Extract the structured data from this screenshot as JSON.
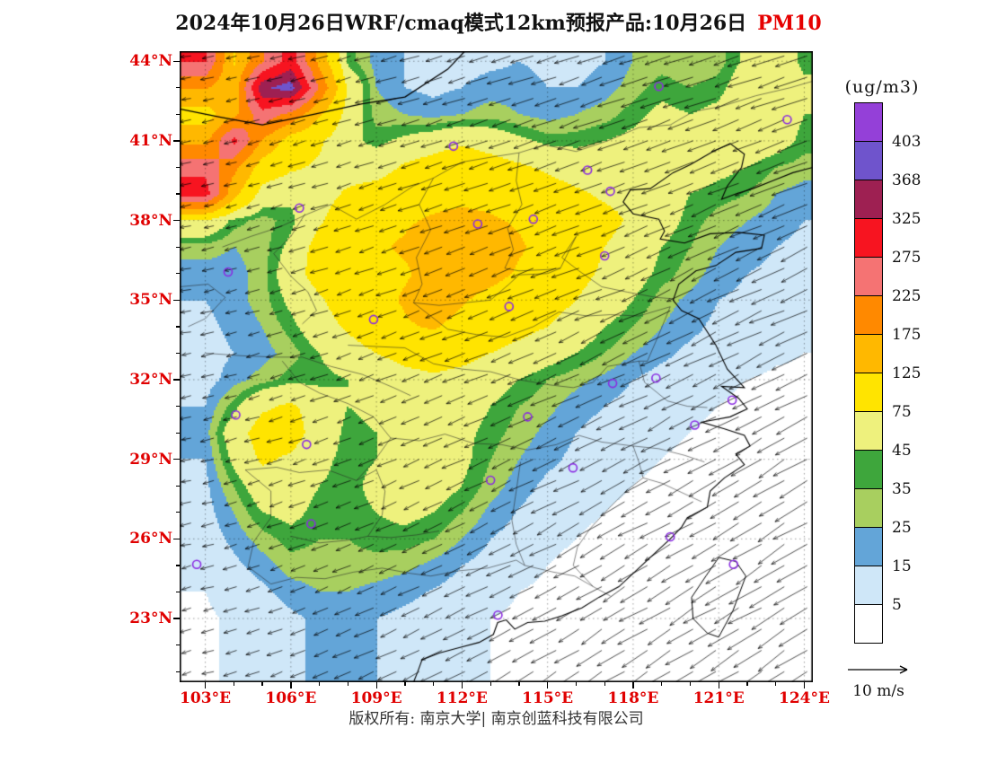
{
  "title": {
    "main": "2024年10月26日WRF/cmaq模式12km预报产品:10月26日",
    "species": "PM10"
  },
  "colors": {
    "axis_label": "#e00000",
    "title_species": "#e60000",
    "station_marker": "#8a2be2",
    "coastline": "#000000"
  },
  "axes": {
    "lon_labels": [
      "103°E",
      "106°E",
      "109°E",
      "112°E",
      "115°E",
      "118°E",
      "121°E",
      "124°E"
    ],
    "lon_values": [
      103,
      106,
      109,
      112,
      115,
      118,
      121,
      124
    ],
    "lat_labels": [
      "23°N",
      "26°N",
      "29°N",
      "32°N",
      "35°N",
      "38°N",
      "41°N",
      "44°N"
    ],
    "lat_values": [
      23,
      26,
      29,
      32,
      35,
      38,
      41,
      44
    ]
  },
  "colorbar": {
    "units": "(ug/m3)",
    "labels": [
      403,
      368,
      325,
      275,
      225,
      175,
      125,
      75,
      45,
      35,
      25,
      15,
      5
    ]
  },
  "wind_reference": {
    "label": "10 m/s",
    "speed_ms": 10
  },
  "footer": {
    "copyright": "版权所有: 南京大学| 南京创蓝科技有限公司"
  },
  "chart_data": {
    "type": "heatmap",
    "title": "2024年10月26日WRF/cmaq模式12km预报产品:10月26日 PM10",
    "units": "ug/m3",
    "xlabel": "",
    "ylabel": "",
    "xlim": [
      102.1,
      124.3
    ],
    "ylim": [
      20.6,
      44.38
    ],
    "x_tick_labels": [
      "103°E",
      "106°E",
      "109°E",
      "112°E",
      "115°E",
      "118°E",
      "121°E",
      "124°E"
    ],
    "y_tick_labels": [
      "23°N",
      "26°N",
      "29°N",
      "32°N",
      "35°N",
      "38°N",
      "41°N",
      "44°N"
    ],
    "levels": [
      5,
      15,
      25,
      35,
      45,
      75,
      125,
      175,
      225,
      275,
      325,
      368,
      403
    ],
    "palette": [
      "#ffffff",
      "#cfe7f8",
      "#63a5d8",
      "#a8cf5f",
      "#3ea63c",
      "#eef17d",
      "#ffe400",
      "#ffb800",
      "#ff8900",
      "#f57373",
      "#f71420",
      "#9e2052",
      "#6f54cc",
      "#9440d8"
    ],
    "x": [
      103,
      104,
      105,
      106,
      107,
      108,
      109,
      110,
      111,
      112,
      113,
      114,
      115,
      116,
      117,
      118,
      119,
      120,
      121,
      122,
      123,
      124
    ],
    "y": [
      44,
      43,
      42,
      41,
      40,
      39,
      38,
      37,
      36,
      35,
      34,
      33,
      32,
      31,
      30,
      29,
      28,
      27,
      26,
      25,
      24,
      23
    ],
    "values": [
      [
        280,
        120,
        220,
        300,
        160,
        40,
        20,
        15,
        10,
        10,
        12,
        15,
        12,
        10,
        15,
        25,
        30,
        25,
        30,
        50,
        60,
        40
      ],
      [
        180,
        140,
        360,
        390,
        220,
        70,
        25,
        15,
        12,
        15,
        20,
        20,
        15,
        15,
        20,
        30,
        40,
        35,
        40,
        60,
        70,
        50
      ],
      [
        100,
        160,
        260,
        210,
        130,
        60,
        30,
        25,
        20,
        25,
        30,
        25,
        20,
        25,
        30,
        40,
        50,
        45,
        50,
        65,
        60,
        45
      ],
      [
        160,
        290,
        170,
        100,
        80,
        50,
        40,
        50,
        60,
        70,
        60,
        50,
        40,
        40,
        45,
        50,
        55,
        50,
        55,
        60,
        55,
        40
      ],
      [
        260,
        190,
        100,
        80,
        70,
        60,
        60,
        80,
        90,
        100,
        90,
        80,
        70,
        60,
        60,
        60,
        60,
        55,
        50,
        45,
        35,
        30
      ],
      [
        300,
        140,
        60,
        50,
        60,
        80,
        90,
        100,
        110,
        110,
        110,
        100,
        90,
        80,
        70,
        65,
        55,
        45,
        40,
        35,
        25,
        20
      ],
      [
        70,
        40,
        30,
        40,
        70,
        100,
        110,
        120,
        130,
        140,
        130,
        120,
        110,
        95,
        85,
        70,
        55,
        40,
        30,
        25,
        20,
        15
      ],
      [
        30,
        25,
        30,
        50,
        90,
        110,
        120,
        130,
        150,
        160,
        150,
        130,
        110,
        90,
        75,
        60,
        45,
        35,
        25,
        20,
        15,
        12
      ],
      [
        20,
        20,
        30,
        60,
        90,
        110,
        115,
        120,
        140,
        150,
        140,
        120,
        100,
        85,
        70,
        55,
        40,
        30,
        20,
        15,
        12,
        10
      ],
      [
        15,
        20,
        30,
        50,
        70,
        95,
        110,
        130,
        150,
        130,
        110,
        100,
        90,
        75,
        60,
        45,
        30,
        22,
        15,
        12,
        10,
        8
      ],
      [
        12,
        18,
        25,
        40,
        60,
        80,
        100,
        120,
        130,
        110,
        95,
        85,
        75,
        60,
        45,
        35,
        25,
        18,
        12,
        10,
        8,
        6
      ],
      [
        10,
        15,
        20,
        30,
        45,
        60,
        75,
        85,
        90,
        85,
        75,
        65,
        55,
        45,
        35,
        25,
        18,
        12,
        10,
        8,
        6,
        5
      ],
      [
        10,
        20,
        30,
        40,
        40,
        45,
        55,
        65,
        70,
        65,
        55,
        45,
        35,
        28,
        22,
        15,
        10,
        8,
        6,
        5,
        4,
        4
      ],
      [
        15,
        40,
        70,
        80,
        60,
        45,
        50,
        55,
        60,
        55,
        45,
        35,
        28,
        20,
        15,
        10,
        8,
        6,
        5,
        4,
        4,
        4
      ],
      [
        20,
        60,
        90,
        90,
        60,
        40,
        45,
        50,
        55,
        50,
        40,
        30,
        22,
        15,
        10,
        8,
        6,
        5,
        4,
        4,
        4,
        4
      ],
      [
        15,
        50,
        80,
        70,
        50,
        40,
        45,
        55,
        60,
        50,
        35,
        25,
        18,
        12,
        8,
        6,
        5,
        4,
        4,
        4,
        4,
        4
      ],
      [
        12,
        35,
        60,
        55,
        45,
        40,
        50,
        60,
        55,
        45,
        30,
        20,
        12,
        8,
        6,
        5,
        4,
        4,
        4,
        4,
        4,
        4
      ],
      [
        10,
        25,
        45,
        50,
        40,
        40,
        45,
        50,
        45,
        35,
        22,
        14,
        8,
        6,
        5,
        4,
        4,
        4,
        4,
        4,
        4,
        4
      ],
      [
        8,
        18,
        30,
        40,
        35,
        35,
        40,
        40,
        35,
        25,
        15,
        10,
        6,
        5,
        4,
        4,
        4,
        4,
        4,
        4,
        4,
        4
      ],
      [
        6,
        12,
        20,
        30,
        30,
        30,
        30,
        28,
        22,
        15,
        10,
        7,
        5,
        4,
        4,
        4,
        4,
        4,
        4,
        4,
        4,
        4
      ],
      [
        5,
        8,
        12,
        20,
        25,
        25,
        22,
        18,
        14,
        10,
        7,
        5,
        4,
        4,
        4,
        4,
        4,
        4,
        4,
        4,
        4,
        4
      ],
      [
        4,
        6,
        8,
        12,
        18,
        18,
        15,
        12,
        10,
        8,
        5,
        4,
        4,
        4,
        4,
        4,
        4,
        4,
        4,
        4,
        4,
        4
      ]
    ],
    "station_markers": [
      [
        111.7,
        40.8
      ],
      [
        123.4,
        41.8
      ],
      [
        118.9,
        43.05
      ],
      [
        116.4,
        39.9
      ],
      [
        117.2,
        39.1
      ],
      [
        114.5,
        38.05
      ],
      [
        112.55,
        37.87
      ],
      [
        106.3,
        38.47
      ],
      [
        103.8,
        36.06
      ],
      [
        108.9,
        34.27
      ],
      [
        113.65,
        34.76
      ],
      [
        117.0,
        36.67
      ],
      [
        118.8,
        32.06
      ],
      [
        117.28,
        31.86
      ],
      [
        121.47,
        31.23
      ],
      [
        120.16,
        30.29
      ],
      [
        114.3,
        30.6
      ],
      [
        104.07,
        30.67
      ],
      [
        106.55,
        29.56
      ],
      [
        113.0,
        28.21
      ],
      [
        115.89,
        28.68
      ],
      [
        106.71,
        26.57
      ],
      [
        102.7,
        25.04
      ],
      [
        119.3,
        26.08
      ],
      [
        121.52,
        25.04
      ],
      [
        113.26,
        23.13
      ]
    ],
    "wind": {
      "reference_ms": 10
    }
  }
}
